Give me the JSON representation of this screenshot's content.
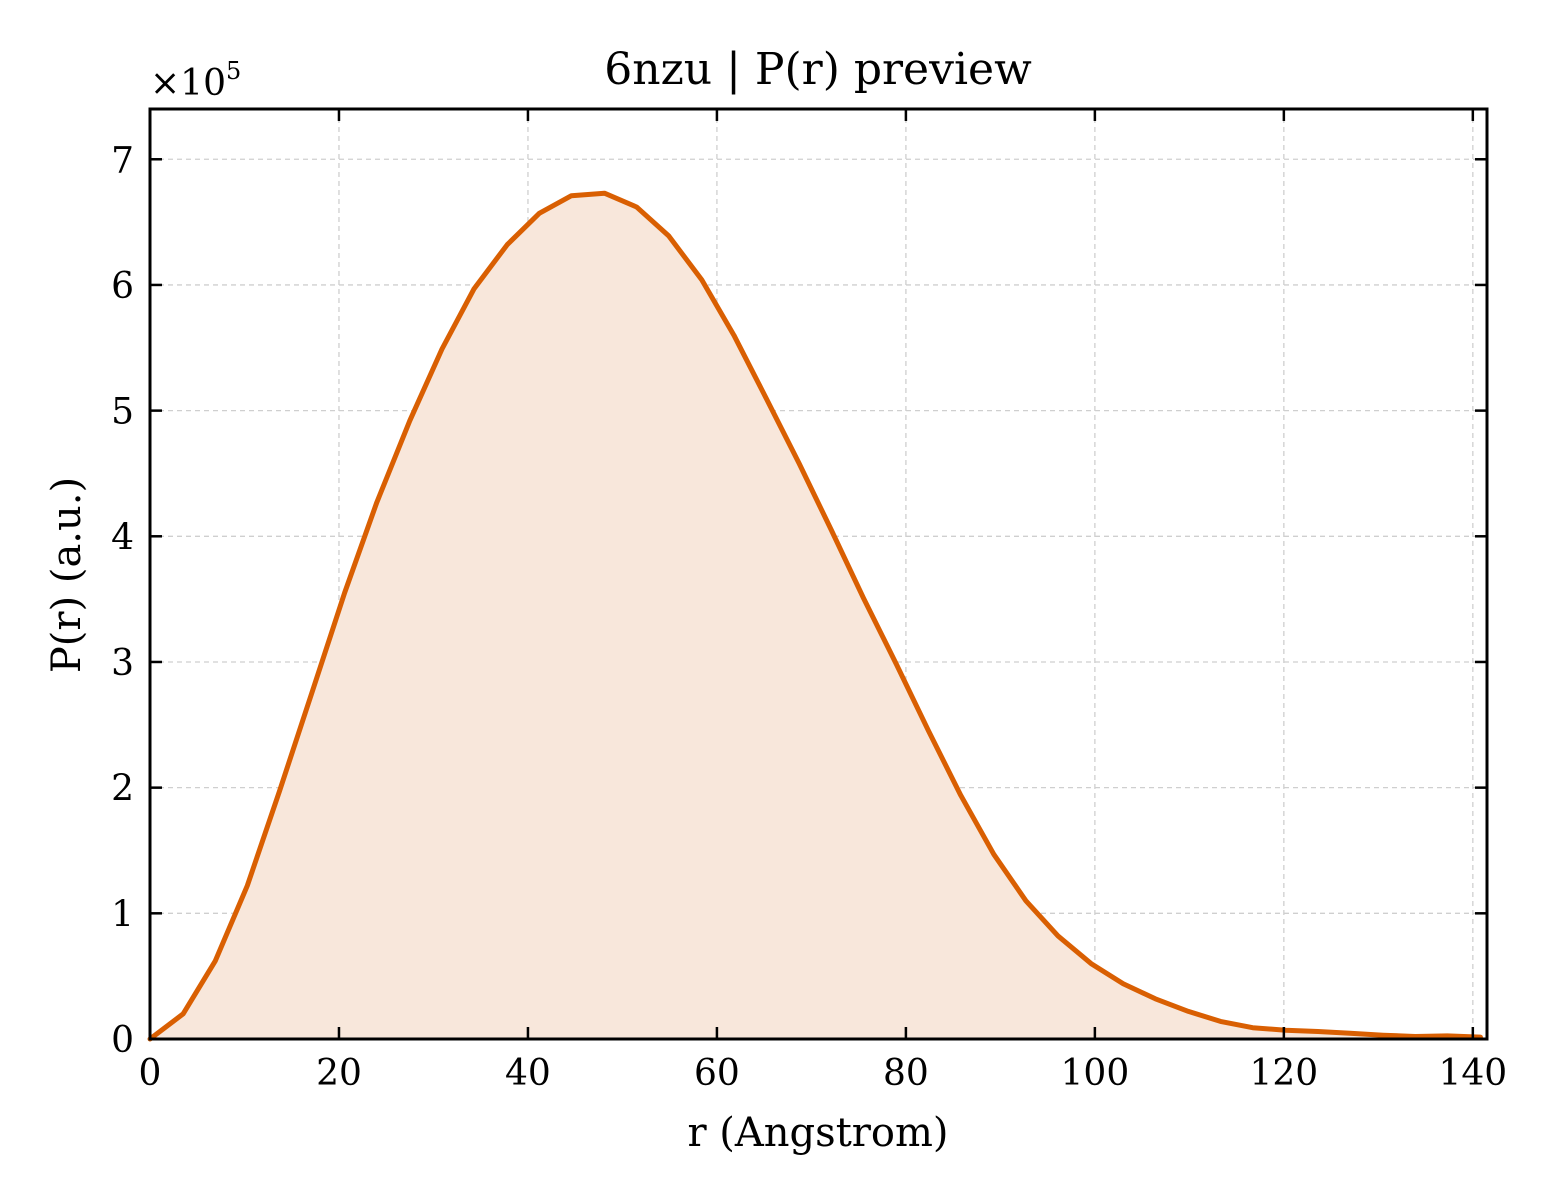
{
  "chart_data": {
    "type": "area",
    "title": "6nzu | P(r) preview",
    "xlabel": "r (Angstrom)",
    "ylabel": "P(r) (a.u.)",
    "y_multiplier_label": "×10",
    "y_multiplier_exponent": "5",
    "xlim": [
      0,
      141.5
    ],
    "ylim": [
      0,
      7.4
    ],
    "x_ticks": [
      0,
      20,
      40,
      60,
      80,
      100,
      120,
      140
    ],
    "x_tick_labels": [
      "0",
      "20",
      "40",
      "60",
      "80",
      "100",
      "120",
      "140"
    ],
    "y_ticks": [
      0,
      1,
      2,
      3,
      4,
      5,
      6,
      7
    ],
    "y_tick_labels": [
      "0",
      "1",
      "2",
      "3",
      "4",
      "5",
      "6",
      "7"
    ],
    "grid": true,
    "line_color": "#d95f02",
    "fill_color": "#f8e7db",
    "series": [
      {
        "x": [
          0,
          3.5,
          6.9,
          10.3,
          13.7,
          17.2,
          20.6,
          24.0,
          27.5,
          30.9,
          34.3,
          37.8,
          41.2,
          44.6,
          48.1,
          51.5,
          54.9,
          58.4,
          61.8,
          65.2,
          68.7,
          72.1,
          75.5,
          79.0,
          82.4,
          85.8,
          89.3,
          92.7,
          96.1,
          99.6,
          103.0,
          106.4,
          109.9,
          113.3,
          116.7,
          120.2,
          123.6,
          127.0,
          130.5,
          133.9,
          137.3,
          140.8
        ],
        "y": [
          0.0,
          0.2,
          0.62,
          1.22,
          1.97,
          2.77,
          3.55,
          4.27,
          4.92,
          5.49,
          5.97,
          6.32,
          6.57,
          6.71,
          6.73,
          6.62,
          6.39,
          6.04,
          5.6,
          5.1,
          4.58,
          4.05,
          3.51,
          2.98,
          2.45,
          1.94,
          1.47,
          1.1,
          0.82,
          0.6,
          0.44,
          0.32,
          0.22,
          0.14,
          0.09,
          0.07,
          0.06,
          0.045,
          0.03,
          0.02,
          0.025,
          0.015
        ]
      }
    ]
  }
}
